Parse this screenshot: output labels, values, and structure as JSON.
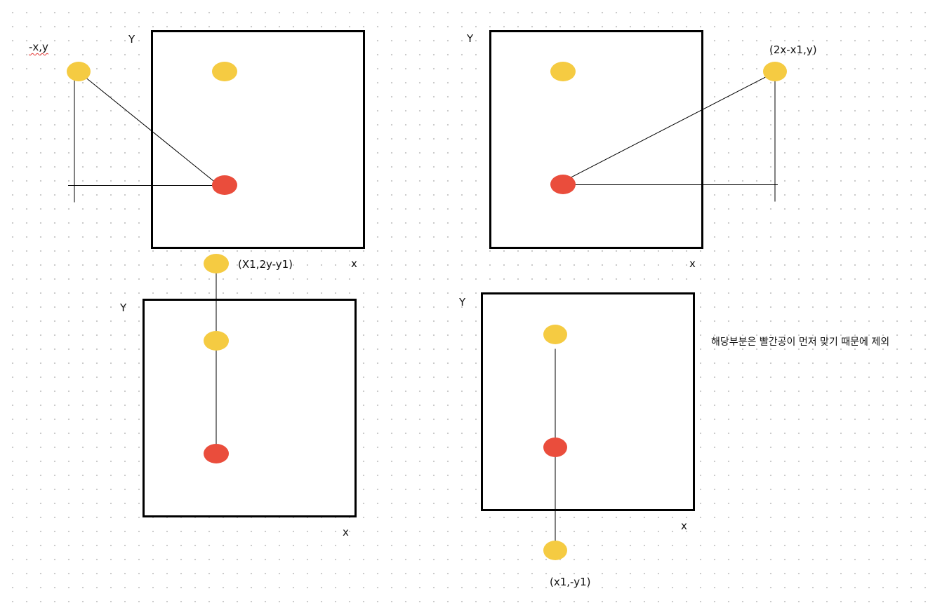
{
  "colors": {
    "yellow_ball": "#f5cb42",
    "red_ball": "#ea4d3c",
    "frame": "#000000",
    "spellcheck_underline": "#e53935"
  },
  "panels": [
    {
      "axis_y": "Y",
      "axis_x": "x",
      "reflection_label": "-x,y"
    },
    {
      "axis_y": "Y",
      "axis_x": "x",
      "reflection_label": "(2x-x1,y)"
    },
    {
      "axis_y": "Y",
      "axis_x": "x",
      "reflection_label": "(X1,2y-y1)"
    },
    {
      "axis_y": "Y",
      "axis_x": "x",
      "reflection_label": "(x1,-y1)"
    }
  ],
  "note": "해당부분은 빨간공이 먼저 맞기 때문에 제외"
}
